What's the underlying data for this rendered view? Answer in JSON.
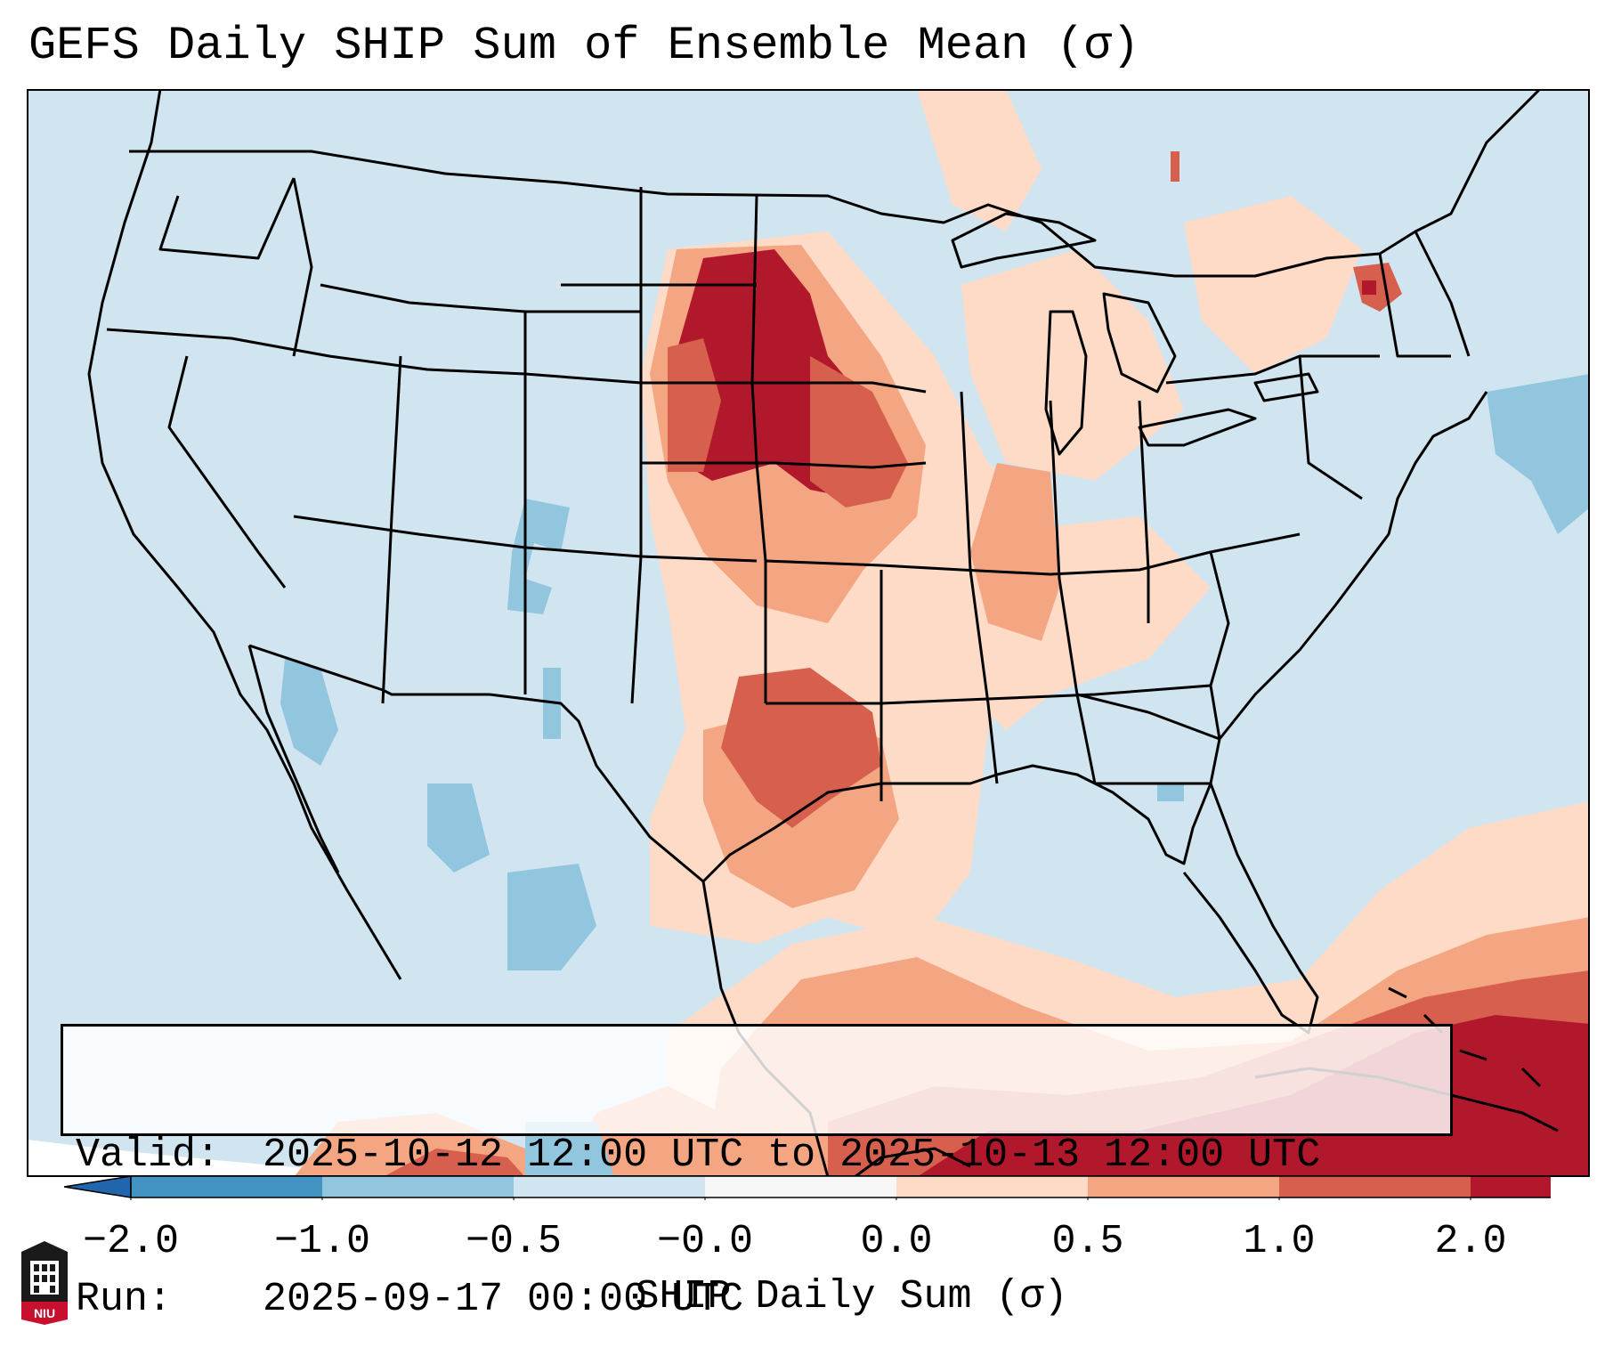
{
  "title": "GEFS Daily SHIP Sum of Ensemble Mean (σ)",
  "info": {
    "valid_label": "Valid:",
    "valid_value": "2025-10-12 12:00 UTC to 2025-10-13 12:00 UTC",
    "run_label": "Run:",
    "run_value": "2025-09-17 00:00 UTC"
  },
  "colorbar": {
    "label": "SHIP Daily Sum (σ)",
    "ticks": [
      "−2.0",
      "−1.0",
      "−0.5",
      "−0.0",
      "0.0",
      "0.5",
      "1.0",
      "2.0"
    ],
    "colors": [
      "#4393c3",
      "#92c5de",
      "#d1e5f0",
      "#f7f7f7",
      "#fddbc7",
      "#f4a582",
      "#d6604d",
      "#b2182b"
    ],
    "extend_low": "#2166ac",
    "extend_high": "#b2182b"
  },
  "logo": {
    "text": "NIU",
    "icon": "university-shield-icon"
  },
  "map_regions": [
    {
      "name": "northern-plains-max",
      "level": 7
    },
    {
      "name": "southern-plains",
      "level": 6
    },
    {
      "name": "gulf-of-mexico",
      "level": 5
    },
    {
      "name": "caribbean",
      "level": 7
    },
    {
      "name": "mid-mississippi-valley",
      "level": 5
    },
    {
      "name": "four-corners",
      "level": 1
    },
    {
      "name": "baja-mexico",
      "level": 1
    },
    {
      "name": "western-atlantic",
      "level": 1
    },
    {
      "name": "gulf-of-st-lawrence",
      "level": 6
    }
  ]
}
